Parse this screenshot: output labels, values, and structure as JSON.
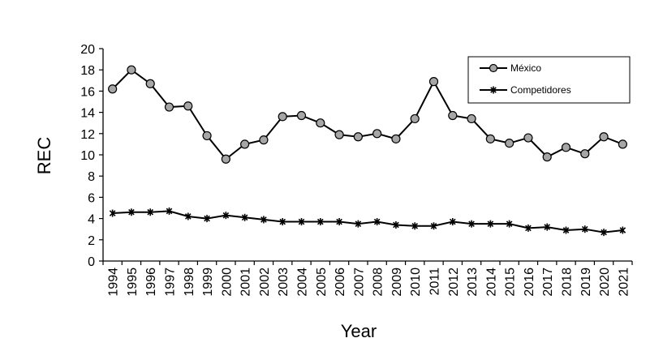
{
  "chart_data": {
    "type": "line",
    "xlabel": "Year",
    "ylabel": "REC",
    "ylim": [
      0,
      20
    ],
    "yticks": [
      "0",
      "2",
      "4",
      "6",
      "8",
      "10",
      "12",
      "14",
      "16",
      "18",
      "20"
    ],
    "categories": [
      "1994",
      "1995",
      "1996",
      "1997",
      "1998",
      "1999",
      "2000",
      "2001",
      "2002",
      "2003",
      "2004",
      "2005",
      "2006",
      "2007",
      "2008",
      "2009",
      "2010",
      "2011",
      "2012",
      "2013",
      "2014",
      "2015",
      "2016",
      "2017",
      "2018",
      "2019",
      "2020",
      "2021"
    ],
    "grid": false,
    "legend_position": "top-right",
    "series": [
      {
        "name": "México",
        "marker": "circle",
        "color": "#000000",
        "marker_fill": "#a6a6a6",
        "values": [
          16.2,
          18.0,
          16.7,
          14.5,
          14.6,
          11.8,
          9.6,
          11.0,
          11.4,
          13.6,
          13.7,
          13.0,
          11.9,
          11.7,
          12.0,
          11.5,
          13.4,
          16.9,
          13.7,
          13.4,
          11.5,
          11.1,
          11.6,
          9.8,
          10.7,
          10.1,
          11.7,
          11.0
        ]
      },
      {
        "name": "Competidores",
        "marker": "star",
        "color": "#000000",
        "values": [
          4.5,
          4.6,
          4.6,
          4.7,
          4.2,
          4.0,
          4.3,
          4.1,
          3.9,
          3.7,
          3.7,
          3.7,
          3.7,
          3.5,
          3.7,
          3.4,
          3.3,
          3.3,
          3.7,
          3.5,
          3.5,
          3.5,
          3.1,
          3.2,
          2.9,
          3.0,
          2.7,
          2.9
        ]
      }
    ]
  }
}
